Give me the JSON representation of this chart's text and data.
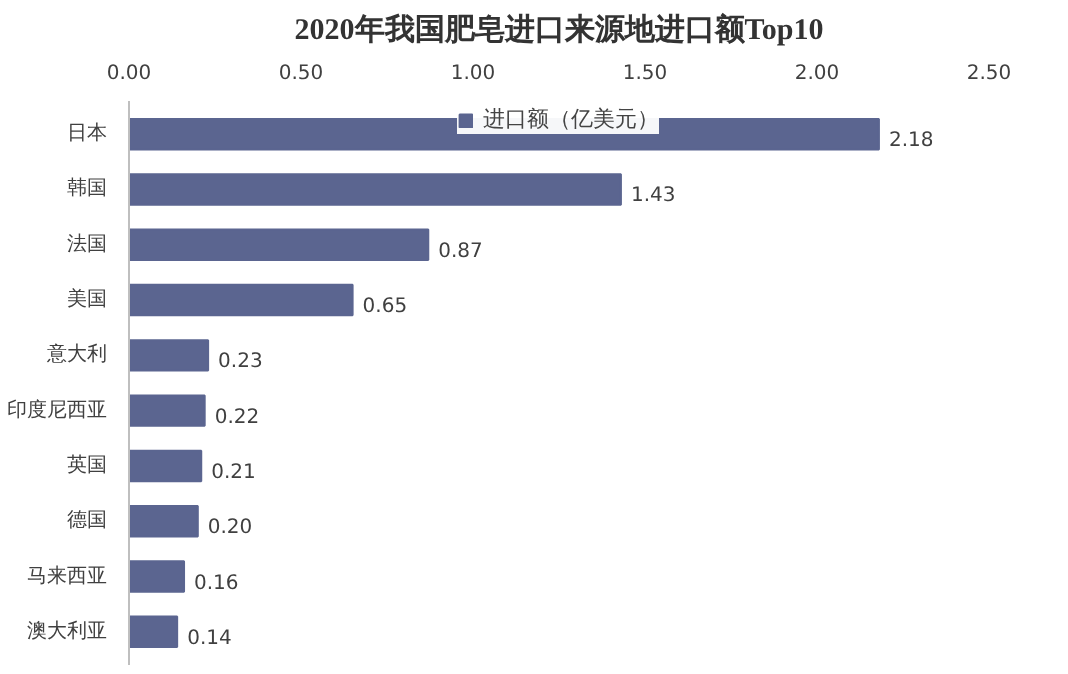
{
  "chart_data": {
    "type": "bar",
    "orientation": "horizontal",
    "title": "2020年我国肥皂进口来源地进口额Top10",
    "categories": [
      "日本",
      "韩国",
      "法国",
      "美国",
      "意大利",
      "印度尼西亚",
      "英国",
      "德国",
      "马来西亚",
      "澳大利亚"
    ],
    "series": [
      {
        "name": "进口额（亿美元）",
        "color": "#5b6590",
        "values": [
          2.18,
          1.43,
          0.87,
          0.65,
          0.23,
          0.22,
          0.21,
          0.2,
          0.16,
          0.14
        ],
        "value_labels": [
          "2.18",
          "1.43",
          "0.87",
          "0.65",
          "0.23",
          "0.22",
          "0.21",
          "0.20",
          "0.16",
          "0.14"
        ]
      }
    ],
    "xlim": [
      0,
      2.5
    ],
    "xticks": [
      {
        "value": 0,
        "label": "0.00"
      },
      {
        "value": 0.5,
        "label": "0.50"
      },
      {
        "value": 1,
        "label": "1.00"
      },
      {
        "value": 1.5,
        "label": "1.50"
      },
      {
        "value": 2,
        "label": "2.00"
      },
      {
        "value": 2.5,
        "label": "2.50"
      }
    ],
    "legend": "top",
    "grid": false
  }
}
